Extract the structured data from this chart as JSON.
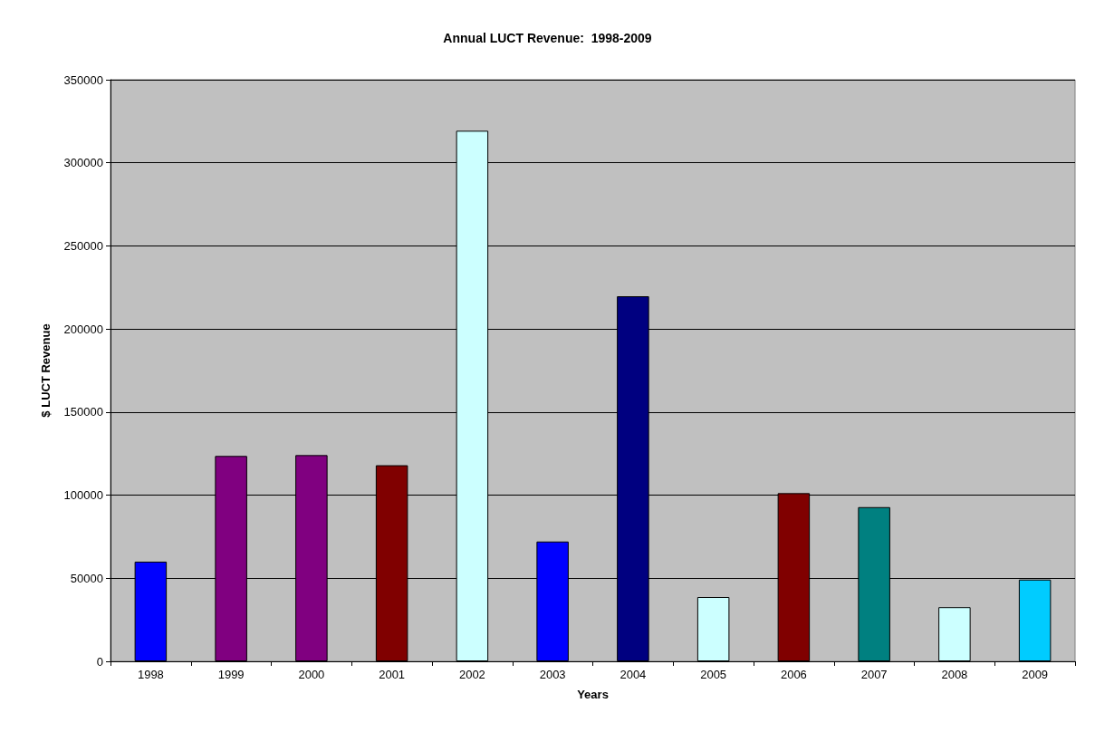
{
  "chart_data": {
    "type": "bar",
    "title": "Annual LUCT Revenue:  1998-2009",
    "xlabel": "Years",
    "ylabel": "$ LUCT Revenue",
    "categories": [
      "1998",
      "1999",
      "2000",
      "2001",
      "2002",
      "2003",
      "2004",
      "2005",
      "2006",
      "2007",
      "2008",
      "2009"
    ],
    "values": [
      60000,
      123600,
      124100,
      118000,
      319300,
      72100,
      219700,
      38700,
      101200,
      92800,
      32600,
      49200
    ],
    "colors": [
      "#0000ff",
      "#800080",
      "#800080",
      "#800000",
      "#ccffff",
      "#0000ff",
      "#000080",
      "#ccffff",
      "#800000",
      "#008080",
      "#ccffff",
      "#00ccff"
    ],
    "ylim": [
      0,
      350000
    ],
    "yticks": [
      0,
      50000,
      100000,
      150000,
      200000,
      250000,
      300000,
      350000
    ],
    "grid": "y"
  }
}
